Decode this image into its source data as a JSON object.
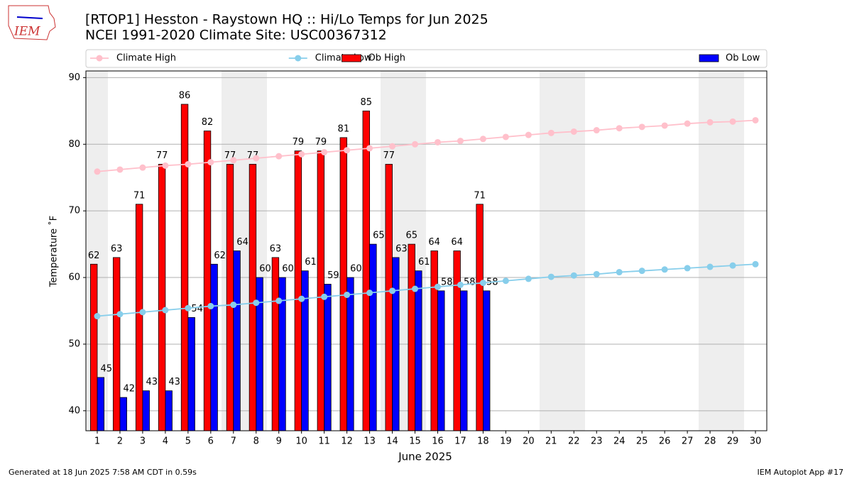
{
  "logo": "IEM",
  "footer_left": "Generated at 18 Jun 2025 7:58 AM CDT in 0.59s",
  "footer_right": "IEM Autoplot App #17",
  "chart_data": {
    "type": "bar",
    "title": "[RTOP1] Hesston - Raystown HQ :: Hi/Lo Temps for Jun 2025",
    "subtitle": "NCEI 1991-2020 Climate Site: USC00367312",
    "x_label": "June 2025",
    "y_label": "Temperature ˚F",
    "x": [
      1,
      2,
      3,
      4,
      5,
      6,
      7,
      8,
      9,
      10,
      11,
      12,
      13,
      14,
      15,
      16,
      17,
      18,
      19,
      20,
      21,
      22,
      23,
      24,
      25,
      26,
      27,
      28,
      29,
      30
    ],
    "xlim": [
      0.5,
      30.5
    ],
    "xticks": [
      1,
      2,
      3,
      4,
      5,
      6,
      7,
      8,
      9,
      10,
      11,
      12,
      13,
      14,
      15,
      16,
      17,
      18,
      19,
      20,
      21,
      22,
      23,
      24,
      25,
      26,
      27,
      28,
      29,
      30
    ],
    "ylim": [
      37,
      91
    ],
    "yticks": [
      40,
      50,
      60,
      70,
      80,
      90
    ],
    "grid": true,
    "legend": "top",
    "series": [
      {
        "name": "Climate High",
        "kind": "line",
        "color": "#ffc0cb",
        "values": [
          75.9,
          76.2,
          76.5,
          76.8,
          77.0,
          77.3,
          77.6,
          77.9,
          78.2,
          78.5,
          78.8,
          79.1,
          79.4,
          79.7,
          80.0,
          80.3,
          80.5,
          80.8,
          81.1,
          81.4,
          81.7,
          81.9,
          82.1,
          82.4,
          82.6,
          82.8,
          83.1,
          83.3,
          83.4,
          83.6
        ]
      },
      {
        "name": "Climate Low",
        "kind": "line",
        "color": "#87ceeb",
        "values": [
          54.2,
          54.5,
          54.8,
          55.1,
          55.4,
          55.7,
          55.9,
          56.2,
          56.5,
          56.8,
          57.1,
          57.4,
          57.7,
          58.0,
          58.3,
          58.6,
          58.9,
          59.2,
          59.5,
          59.8,
          60.1,
          60.3,
          60.5,
          60.8,
          61.0,
          61.2,
          61.4,
          61.6,
          61.8,
          62.0
        ]
      },
      {
        "name": "Ob High",
        "kind": "bar",
        "color": "#ff0000",
        "values": [
          62,
          63,
          71,
          77,
          86,
          82,
          77,
          77,
          63,
          79,
          79,
          81,
          85,
          77,
          65,
          64,
          64,
          71,
          null,
          null,
          null,
          null,
          null,
          null,
          null,
          null,
          null,
          null,
          null,
          null
        ]
      },
      {
        "name": "Ob Low",
        "kind": "bar",
        "color": "#0000ff",
        "values": [
          45,
          42,
          43,
          43,
          54,
          62,
          64,
          60,
          60,
          61,
          59,
          60,
          65,
          63,
          61,
          58,
          58,
          58,
          null,
          null,
          null,
          null,
          null,
          null,
          null,
          null,
          null,
          null,
          null,
          null
        ]
      }
    ]
  }
}
